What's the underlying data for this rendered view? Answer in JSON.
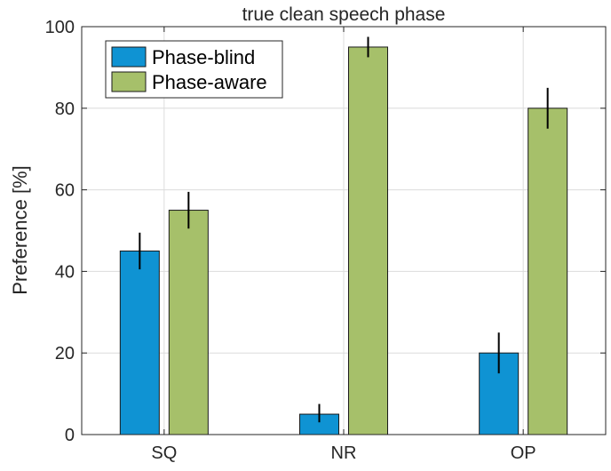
{
  "chart_data": {
    "type": "bar",
    "title": "true clean speech phase",
    "xlabel": "",
    "ylabel": "Preference [%]",
    "categories": [
      "SQ",
      "NR",
      "OP"
    ],
    "ylim": [
      0,
      100
    ],
    "yticks": [
      0,
      20,
      40,
      60,
      80,
      100
    ],
    "grid": true,
    "legend_position": "top-left",
    "series": [
      {
        "name": "Phase-blind",
        "color": "#0f93d3",
        "values": [
          45,
          5,
          20
        ],
        "error_low": [
          40.5,
          3,
          15
        ],
        "error_high": [
          49.5,
          7.5,
          25
        ]
      },
      {
        "name": "Phase-aware",
        "color": "#a6c06a",
        "values": [
          55,
          95,
          80
        ],
        "error_low": [
          50.5,
          92.5,
          75
        ],
        "error_high": [
          59.5,
          97.5,
          85
        ]
      }
    ]
  }
}
